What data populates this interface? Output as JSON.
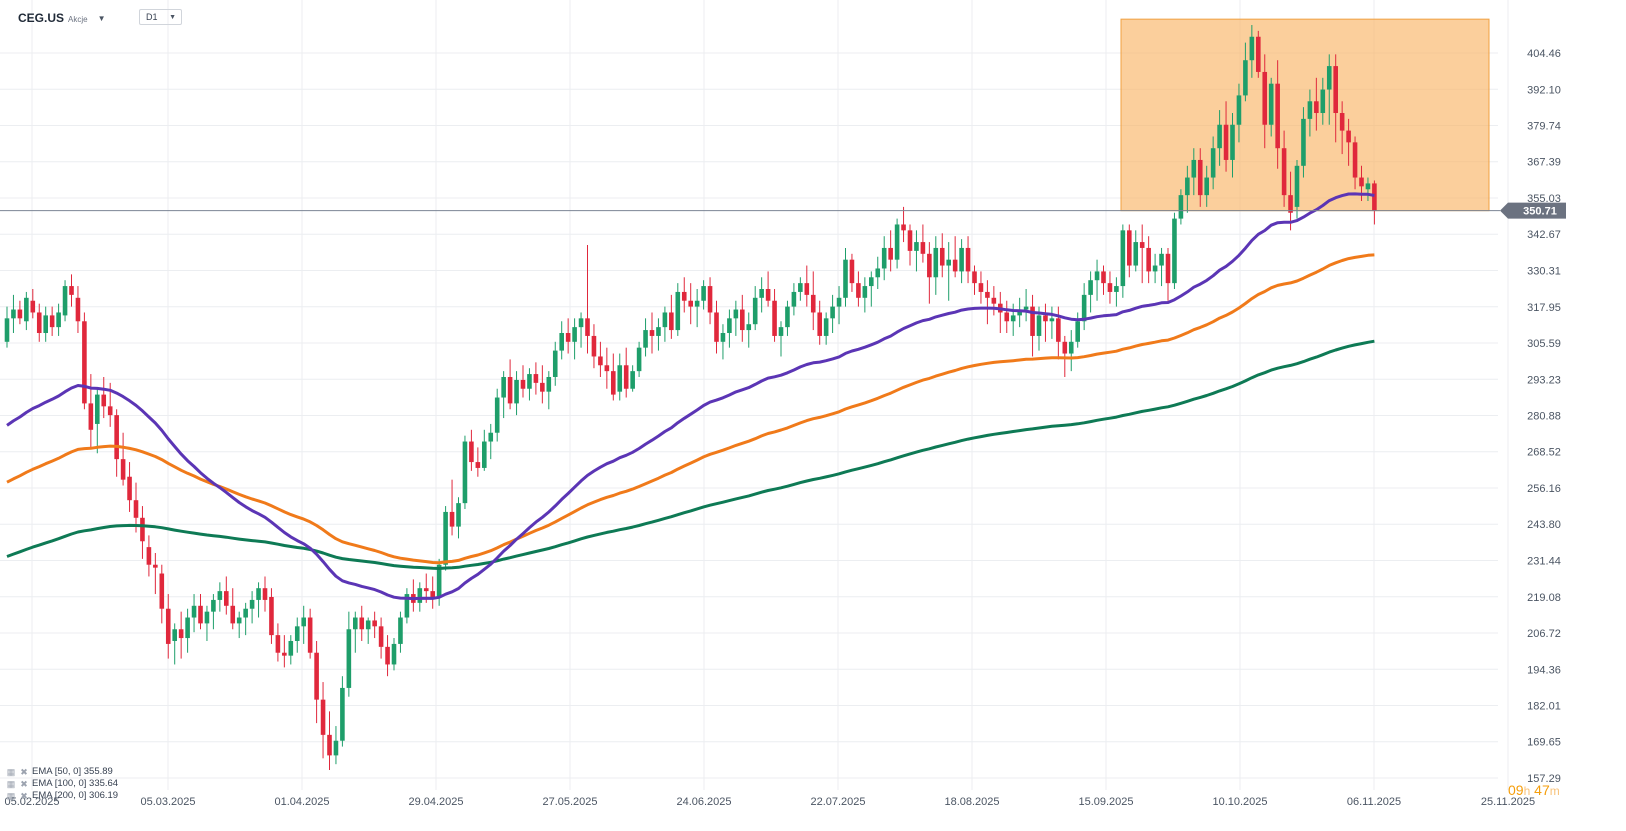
{
  "header": {
    "symbol": "CEG.US",
    "instrument_type": "Akcje",
    "timeframe": "D1"
  },
  "colors": {
    "bull": "#1e9e6a",
    "bear": "#e0283c",
    "ema50": "#5b35b5",
    "ema100": "#f07a1a",
    "ema200": "#0e7a55",
    "highlight": "#f9b567",
    "grid": "#eceef1",
    "price_tag": "#6b7280"
  },
  "legend": [
    {
      "text": "EMA [50, 0] 355.89"
    },
    {
      "text": "EMA [100, 0] 335.64"
    },
    {
      "text": "EMA [200, 0] 306.19"
    }
  ],
  "timer": {
    "hours": "09",
    "hours_unit": "h",
    "minutes": "47",
    "minutes_unit": "m"
  },
  "chart_data": {
    "type": "candlestick",
    "symbol": "CEG.US",
    "timeframe": "D1",
    "last_price": 350.71,
    "ylim": [
      157.29,
      416.0
    ],
    "y_ticks": [
      "404.46",
      "392.10",
      "379.74",
      "367.39",
      "355.03",
      "342.67",
      "330.31",
      "317.95",
      "305.59",
      "293.23",
      "280.88",
      "268.52",
      "256.16",
      "243.80",
      "231.44",
      "219.08",
      "206.72",
      "194.36",
      "182.01",
      "169.65",
      "157.29"
    ],
    "x_ticks": [
      "05.02.2025",
      "05.03.2025",
      "01.04.2025",
      "29.04.2025",
      "27.05.2025",
      "24.06.2025",
      "22.07.2025",
      "18.08.2025",
      "15.09.2025",
      "10.10.2025",
      "06.11.2025",
      "25.11.2025"
    ],
    "highlight_zone": {
      "from": "15.09.2025",
      "to": "10.11.2025",
      "y_low": 350.71,
      "y_high": 416.0
    },
    "price_line": 350.71,
    "ohlc": [
      [
        306,
        318,
        304,
        314
      ],
      [
        314,
        322,
        309,
        317
      ],
      [
        317,
        320,
        312,
        314
      ],
      [
        313,
        323,
        310,
        321
      ],
      [
        320,
        324,
        314,
        316
      ],
      [
        316,
        319,
        306,
        309
      ],
      [
        309,
        318,
        306,
        315
      ],
      [
        315,
        318,
        308,
        311
      ],
      [
        311,
        319,
        308,
        316
      ],
      [
        315,
        327,
        313,
        325
      ],
      [
        325,
        329,
        318,
        322
      ],
      [
        321,
        325,
        309,
        313
      ],
      [
        313,
        316,
        283,
        285
      ],
      [
        285,
        295,
        270,
        276
      ],
      [
        278,
        290,
        268,
        288
      ],
      [
        288,
        294,
        280,
        284
      ],
      [
        284,
        292,
        277,
        281
      ],
      [
        281,
        283,
        260,
        266
      ],
      [
        266,
        275,
        257,
        259
      ],
      [
        260,
        265,
        248,
        252
      ],
      [
        252,
        258,
        241,
        246
      ],
      [
        246,
        250,
        232,
        238
      ],
      [
        236,
        240,
        226,
        230
      ],
      [
        230,
        234,
        220,
        229
      ],
      [
        227,
        230,
        210,
        215
      ],
      [
        215,
        220,
        198,
        203
      ],
      [
        204,
        210,
        196,
        208
      ],
      [
        208,
        214,
        198,
        205
      ],
      [
        205,
        215,
        200,
        212
      ],
      [
        212,
        220,
        207,
        216
      ],
      [
        216,
        220,
        208,
        210
      ],
      [
        210,
        216,
        204,
        214
      ],
      [
        214,
        220,
        208,
        218
      ],
      [
        218,
        224,
        214,
        221
      ],
      [
        221,
        226,
        213,
        216
      ],
      [
        216,
        222,
        208,
        210
      ],
      [
        210,
        214,
        205,
        212
      ],
      [
        212,
        217,
        206,
        215
      ],
      [
        215,
        221,
        210,
        218
      ],
      [
        218,
        224,
        212,
        222
      ],
      [
        222,
        226,
        214,
        218
      ],
      [
        219,
        222,
        203,
        206
      ],
      [
        206,
        210,
        197,
        200
      ],
      [
        200,
        206,
        195,
        199
      ],
      [
        199,
        206,
        196,
        204
      ],
      [
        204,
        212,
        200,
        209
      ],
      [
        209,
        216,
        203,
        212
      ],
      [
        212,
        215,
        198,
        200
      ],
      [
        200,
        204,
        176,
        184
      ],
      [
        184,
        190,
        164,
        172
      ],
      [
        172,
        180,
        160,
        165
      ],
      [
        165,
        175,
        162,
        170
      ],
      [
        170,
        192,
        168,
        188
      ],
      [
        188,
        214,
        185,
        208
      ],
      [
        208,
        214,
        200,
        212
      ],
      [
        212,
        216,
        204,
        208
      ],
      [
        208,
        212,
        203,
        211
      ],
      [
        211,
        214,
        205,
        209
      ],
      [
        209,
        212,
        198,
        202
      ],
      [
        202,
        206,
        192,
        196
      ],
      [
        196,
        205,
        194,
        203
      ],
      [
        203,
        214,
        200,
        212
      ],
      [
        212,
        222,
        210,
        220
      ],
      [
        220,
        225,
        214,
        217
      ],
      [
        217,
        224,
        214,
        222
      ],
      [
        222,
        227,
        217,
        221
      ],
      [
        221,
        226,
        215,
        219
      ],
      [
        219,
        232,
        216,
        230
      ],
      [
        230,
        250,
        228,
        248
      ],
      [
        248,
        259,
        240,
        243
      ],
      [
        243,
        253,
        239,
        251
      ],
      [
        251,
        274,
        249,
        272
      ],
      [
        272,
        276,
        262,
        265
      ],
      [
        265,
        270,
        260,
        263
      ],
      [
        263,
        276,
        262,
        272
      ],
      [
        272,
        278,
        266,
        275
      ],
      [
        275,
        290,
        272,
        287
      ],
      [
        287,
        296,
        280,
        294
      ],
      [
        294,
        300,
        283,
        285
      ],
      [
        285,
        296,
        281,
        293
      ],
      [
        293,
        298,
        287,
        290
      ],
      [
        290,
        297,
        286,
        295
      ],
      [
        295,
        299,
        288,
        292
      ],
      [
        292,
        298,
        285,
        289
      ],
      [
        289,
        296,
        283,
        294
      ],
      [
        294,
        306,
        291,
        303
      ],
      [
        303,
        313,
        300,
        309
      ],
      [
        309,
        314,
        302,
        306
      ],
      [
        306,
        314,
        300,
        311
      ],
      [
        311,
        316,
        304,
        314
      ],
      [
        314,
        339,
        302,
        308
      ],
      [
        308,
        312,
        297,
        301
      ],
      [
        301,
        306,
        294,
        298
      ],
      [
        298,
        304,
        290,
        296
      ],
      [
        296,
        302,
        286,
        288
      ],
      [
        289,
        302,
        286,
        298
      ],
      [
        298,
        304,
        287,
        290
      ],
      [
        290,
        298,
        289,
        296
      ],
      [
        296,
        306,
        294,
        304
      ],
      [
        304,
        314,
        301,
        310
      ],
      [
        310,
        316,
        302,
        308
      ],
      [
        308,
        314,
        303,
        311
      ],
      [
        311,
        318,
        306,
        316
      ],
      [
        316,
        322,
        307,
        310
      ],
      [
        310,
        326,
        308,
        323
      ],
      [
        323,
        328,
        316,
        320
      ],
      [
        320,
        326,
        312,
        318
      ],
      [
        318,
        324,
        311,
        320
      ],
      [
        320,
        327,
        317,
        325
      ],
      [
        325,
        328,
        312,
        316
      ],
      [
        316,
        320,
        302,
        306
      ],
      [
        306,
        312,
        300,
        309
      ],
      [
        309,
        317,
        304,
        314
      ],
      [
        314,
        320,
        308,
        317
      ],
      [
        317,
        322,
        306,
        310
      ],
      [
        310,
        316,
        304,
        312
      ],
      [
        312,
        325,
        310,
        321
      ],
      [
        321,
        328,
        316,
        324
      ],
      [
        324,
        330,
        318,
        320
      ],
      [
        320,
        324,
        306,
        308
      ],
      [
        308,
        313,
        301,
        311
      ],
      [
        311,
        320,
        308,
        318
      ],
      [
        318,
        326,
        315,
        323
      ],
      [
        323,
        328,
        320,
        326
      ],
      [
        326,
        332,
        318,
        322
      ],
      [
        322,
        330,
        310,
        316
      ],
      [
        316,
        320,
        305,
        308
      ],
      [
        308,
        316,
        305,
        314
      ],
      [
        314,
        322,
        309,
        318
      ],
      [
        318,
        325,
        312,
        321
      ],
      [
        321,
        338,
        318,
        334
      ],
      [
        334,
        336,
        323,
        326
      ],
      [
        326,
        330,
        318,
        321
      ],
      [
        321,
        328,
        316,
        325
      ],
      [
        325,
        330,
        318,
        328
      ],
      [
        328,
        335,
        324,
        331
      ],
      [
        331,
        342,
        327,
        338
      ],
      [
        338,
        344,
        330,
        334
      ],
      [
        334,
        348,
        331,
        346
      ],
      [
        346,
        352,
        340,
        344
      ],
      [
        344,
        346,
        332,
        337
      ],
      [
        337,
        344,
        330,
        340
      ],
      [
        340,
        346,
        333,
        336
      ],
      [
        336,
        340,
        319,
        328
      ],
      [
        328,
        342,
        322,
        338
      ],
      [
        338,
        343,
        328,
        332
      ],
      [
        332,
        340,
        320,
        334
      ],
      [
        334,
        342,
        328,
        330
      ],
      [
        330,
        341,
        326,
        338
      ],
      [
        338,
        342,
        326,
        330
      ],
      [
        330,
        332,
        322,
        326
      ],
      [
        326,
        330,
        319,
        323
      ],
      [
        323,
        327,
        312,
        321
      ],
      [
        321,
        325,
        315,
        319
      ],
      [
        319,
        323,
        309,
        316
      ],
      [
        316,
        320,
        309,
        313
      ],
      [
        313,
        319,
        308,
        315
      ],
      [
        315,
        321,
        311,
        317
      ],
      [
        317,
        324,
        313,
        318
      ],
      [
        318,
        322,
        301,
        308
      ],
      [
        308,
        318,
        303,
        315
      ],
      [
        315,
        319,
        306,
        313
      ],
      [
        313,
        318,
        307,
        314
      ],
      [
        314,
        318,
        300,
        306
      ],
      [
        306,
        308,
        294,
        302
      ],
      [
        302,
        310,
        296,
        306
      ],
      [
        306,
        316,
        304,
        313
      ],
      [
        313,
        326,
        310,
        322
      ],
      [
        322,
        330,
        316,
        327
      ],
      [
        327,
        334,
        320,
        330
      ],
      [
        330,
        332,
        322,
        326
      ],
      [
        326,
        330,
        319,
        323
      ],
      [
        323,
        328,
        318,
        325
      ],
      [
        325,
        346,
        321,
        344
      ],
      [
        344,
        346,
        328,
        332
      ],
      [
        332,
        344,
        330,
        340
      ],
      [
        340,
        346,
        326,
        338
      ],
      [
        338,
        342,
        326,
        330
      ],
      [
        330,
        336,
        326,
        332
      ],
      [
        332,
        338,
        325,
        336
      ],
      [
        336,
        338,
        320,
        326
      ],
      [
        326,
        350,
        324,
        348
      ],
      [
        348,
        358,
        346,
        356
      ],
      [
        356,
        366,
        350,
        362
      ],
      [
        362,
        372,
        356,
        368
      ],
      [
        368,
        372,
        352,
        356
      ],
      [
        356,
        366,
        352,
        362
      ],
      [
        362,
        376,
        358,
        372
      ],
      [
        372,
        385,
        366,
        380
      ],
      [
        380,
        388,
        364,
        368
      ],
      [
        368,
        384,
        362,
        380
      ],
      [
        380,
        394,
        374,
        390
      ],
      [
        390,
        408,
        388,
        402
      ],
      [
        402,
        414,
        396,
        410
      ],
      [
        410,
        412,
        396,
        398
      ],
      [
        398,
        404,
        372,
        380
      ],
      [
        380,
        396,
        376,
        394
      ],
      [
        394,
        402,
        365,
        372
      ],
      [
        372,
        378,
        352,
        356
      ],
      [
        356,
        364,
        344,
        350
      ],
      [
        352,
        368,
        348,
        366
      ],
      [
        366,
        386,
        362,
        382
      ],
      [
        382,
        392,
        376,
        388
      ],
      [
        388,
        396,
        378,
        384
      ],
      [
        384,
        396,
        380,
        392
      ],
      [
        392,
        404,
        380,
        400
      ],
      [
        400,
        404,
        374,
        384
      ],
      [
        384,
        388,
        370,
        378
      ],
      [
        378,
        382,
        366,
        374
      ],
      [
        374,
        376,
        358,
        362
      ],
      [
        362,
        366,
        354,
        359
      ],
      [
        358,
        362,
        354,
        360
      ],
      [
        360,
        361,
        346,
        350.71
      ]
    ],
    "ema50_end": 355.89,
    "ema100_end": 335.64,
    "ema200_end": 306.19
  }
}
